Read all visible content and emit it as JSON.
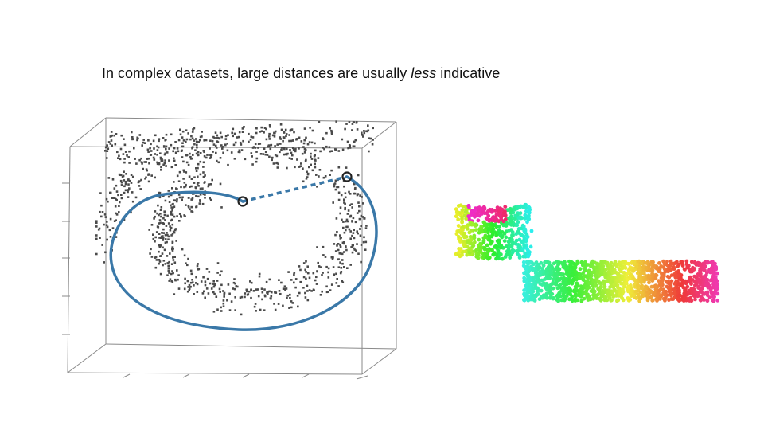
{
  "slide": {
    "title_before": "In complex datasets, large distances are usually ",
    "title_emphasis": "less",
    "title_after": " indicative"
  },
  "colors": {
    "background": "#ffffff",
    "text": "#111111",
    "box_lines": "#8a8a8a",
    "points": "#4a4a4a",
    "geodesic_path": "#3a78a8",
    "endpoint_ring": "#222222",
    "rainbow": [
      "#f03a3a",
      "#f08a2a",
      "#e8d42a",
      "#4ad44a",
      "#3ad4c4",
      "#3a7af0",
      "#9a4af0",
      "#f04ac4"
    ]
  },
  "figures": {
    "left": "swiss-roll-3d-scatter-with-geodesic",
    "right": "swiss-roll-and-unrolled-strip"
  }
}
